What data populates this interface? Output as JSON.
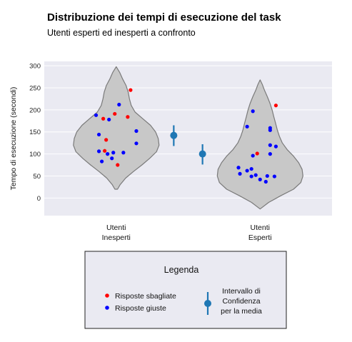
{
  "chart_data": {
    "type": "scatter",
    "title": "Distribuzione dei tempi di esecuzione del task",
    "subtitle": "Utenti esperti ed inesperti a confronto",
    "ylabel": "Tempo di esecuzione (secondi)",
    "ylim": [
      -40,
      310
    ],
    "yticks": [
      0,
      50,
      100,
      150,
      200,
      250,
      300
    ],
    "categories": [
      "Utenti\nInesperti",
      "Utenti\nEsperti"
    ],
    "grid": true,
    "violins": [
      {
        "category": 0,
        "min": 20,
        "max": 298,
        "profile": [
          [
            20,
            0.03
          ],
          [
            30,
            0.09
          ],
          [
            45,
            0.22
          ],
          [
            60,
            0.4
          ],
          [
            75,
            0.6
          ],
          [
            90,
            0.78
          ],
          [
            105,
            0.94
          ],
          [
            120,
            1.0
          ],
          [
            135,
            0.98
          ],
          [
            150,
            0.92
          ],
          [
            165,
            0.8
          ],
          [
            180,
            0.62
          ],
          [
            195,
            0.44
          ],
          [
            210,
            0.35
          ],
          [
            225,
            0.31
          ],
          [
            240,
            0.28
          ],
          [
            255,
            0.23
          ],
          [
            270,
            0.15
          ],
          [
            285,
            0.08
          ],
          [
            298,
            0.0
          ]
        ]
      },
      {
        "category": 1,
        "min": -25,
        "max": 268,
        "profile": [
          [
            -25,
            0.0
          ],
          [
            -10,
            0.2
          ],
          [
            5,
            0.48
          ],
          [
            20,
            0.78
          ],
          [
            35,
            0.95
          ],
          [
            50,
            1.0
          ],
          [
            65,
            0.98
          ],
          [
            80,
            0.9
          ],
          [
            95,
            0.78
          ],
          [
            110,
            0.63
          ],
          [
            125,
            0.52
          ],
          [
            140,
            0.45
          ],
          [
            155,
            0.4
          ],
          [
            170,
            0.36
          ],
          [
            185,
            0.32
          ],
          [
            200,
            0.28
          ],
          [
            215,
            0.23
          ],
          [
            230,
            0.17
          ],
          [
            245,
            0.1
          ],
          [
            258,
            0.05
          ],
          [
            268,
            0.0
          ]
        ]
      }
    ],
    "series": [
      {
        "name": "Risposte sbagliate",
        "color": "#ff0000",
        "points": [
          {
            "cat": 0,
            "jitter": 0.1,
            "y": 245
          },
          {
            "cat": 0,
            "jitter": -0.01,
            "y": 191
          },
          {
            "cat": 0,
            "jitter": 0.08,
            "y": 184
          },
          {
            "cat": 0,
            "jitter": -0.09,
            "y": 180
          },
          {
            "cat": 0,
            "jitter": -0.07,
            "y": 132
          },
          {
            "cat": 0,
            "jitter": -0.08,
            "y": 107
          },
          {
            "cat": 0,
            "jitter": 0.01,
            "y": 75
          },
          {
            "cat": 1,
            "jitter": 0.11,
            "y": 210
          },
          {
            "cat": 1,
            "jitter": -0.02,
            "y": 101
          }
        ]
      },
      {
        "name": "Risposte giuste",
        "color": "#0000ff",
        "points": [
          {
            "cat": 0,
            "jitter": 0.02,
            "y": 212
          },
          {
            "cat": 0,
            "jitter": -0.14,
            "y": 188
          },
          {
            "cat": 0,
            "jitter": -0.05,
            "y": 178
          },
          {
            "cat": 0,
            "jitter": 0.14,
            "y": 152
          },
          {
            "cat": 0,
            "jitter": -0.12,
            "y": 144
          },
          {
            "cat": 0,
            "jitter": 0.14,
            "y": 124
          },
          {
            "cat": 0,
            "jitter": -0.12,
            "y": 106
          },
          {
            "cat": 0,
            "jitter": -0.02,
            "y": 103
          },
          {
            "cat": 0,
            "jitter": 0.05,
            "y": 103
          },
          {
            "cat": 0,
            "jitter": -0.06,
            "y": 100
          },
          {
            "cat": 0,
            "jitter": -0.03,
            "y": 90
          },
          {
            "cat": 0,
            "jitter": -0.1,
            "y": 83
          },
          {
            "cat": 1,
            "jitter": -0.05,
            "y": 197
          },
          {
            "cat": 1,
            "jitter": -0.09,
            "y": 162
          },
          {
            "cat": 1,
            "jitter": 0.07,
            "y": 159
          },
          {
            "cat": 1,
            "jitter": 0.07,
            "y": 154
          },
          {
            "cat": 1,
            "jitter": 0.07,
            "y": 120
          },
          {
            "cat": 1,
            "jitter": 0.11,
            "y": 117
          },
          {
            "cat": 1,
            "jitter": 0.07,
            "y": 100
          },
          {
            "cat": 1,
            "jitter": -0.05,
            "y": 96
          },
          {
            "cat": 1,
            "jitter": -0.15,
            "y": 69
          },
          {
            "cat": 1,
            "jitter": -0.06,
            "y": 66
          },
          {
            "cat": 1,
            "jitter": -0.09,
            "y": 62
          },
          {
            "cat": 1,
            "jitter": -0.14,
            "y": 55
          },
          {
            "cat": 1,
            "jitter": -0.03,
            "y": 52
          },
          {
            "cat": 1,
            "jitter": 0.05,
            "y": 50
          },
          {
            "cat": 1,
            "jitter": -0.06,
            "y": 49
          },
          {
            "cat": 1,
            "jitter": 0.1,
            "y": 49
          },
          {
            "cat": 1,
            "jitter": 0.0,
            "y": 42
          },
          {
            "cat": 1,
            "jitter": 0.04,
            "y": 37
          }
        ]
      }
    ],
    "confidence_intervals": [
      {
        "position": 0.4,
        "mean": 142,
        "low": 118,
        "high": 165
      },
      {
        "position": 0.6,
        "mean": 100,
        "low": 76,
        "high": 122
      }
    ],
    "ci_color": "#1f77b4",
    "violin_fill": "#c8c8c8",
    "violin_edge": "#7a7a7a",
    "background": "#eaeaf2",
    "legend": {
      "title": "Legenda",
      "placement": "bottom",
      "items": [
        {
          "label": "Risposte sbagliate",
          "kind": "dot",
          "color": "#ff0000"
        },
        {
          "label": "Risposte giuste",
          "kind": "dot",
          "color": "#0000ff"
        },
        {
          "label": "Intervallo di\nConfidenza\nper la media",
          "kind": "errorbar",
          "color": "#1f77b4"
        }
      ]
    }
  }
}
